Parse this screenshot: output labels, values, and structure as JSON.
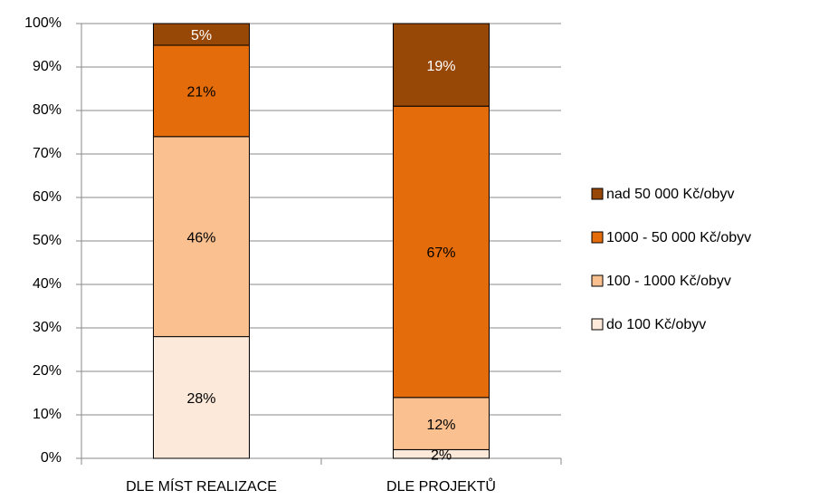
{
  "chart_data": {
    "type": "stacked_bar",
    "categories": [
      "DLE MÍST REALIZACE",
      "DLE PROJEKTŮ"
    ],
    "series": [
      {
        "name": "do 100 Kč/obyv",
        "color": "#fde9d9",
        "values": [
          28,
          2
        ],
        "value_labels": [
          "28%",
          "2%"
        ]
      },
      {
        "name": "100 - 1000 Kč/obyv",
        "color": "#fac090",
        "values": [
          46,
          12
        ],
        "value_labels": [
          "46%",
          "12%"
        ]
      },
      {
        "name": "1000 - 50 000 Kč/obyv",
        "color": "#e46c0a",
        "values": [
          21,
          67
        ],
        "value_labels": [
          "21%",
          "67%"
        ]
      },
      {
        "name": "nad 50 000 Kč/obyv",
        "color": "#974706",
        "values": [
          5,
          19
        ],
        "value_labels": [
          "5%",
          "19%"
        ]
      }
    ],
    "ylim": [
      0,
      100
    ],
    "yticks": [
      {
        "value": 0,
        "label": "0%"
      },
      {
        "value": 10,
        "label": "10%"
      },
      {
        "value": 20,
        "label": "20%"
      },
      {
        "value": 30,
        "label": "30%"
      },
      {
        "value": 40,
        "label": "40%"
      },
      {
        "value": 50,
        "label": "50%"
      },
      {
        "value": 60,
        "label": "60%"
      },
      {
        "value": 70,
        "label": "70%"
      },
      {
        "value": 80,
        "label": "80%"
      },
      {
        "value": 90,
        "label": "90%"
      },
      {
        "value": 100,
        "label": "100%"
      }
    ],
    "grid": true,
    "legend": "right"
  }
}
